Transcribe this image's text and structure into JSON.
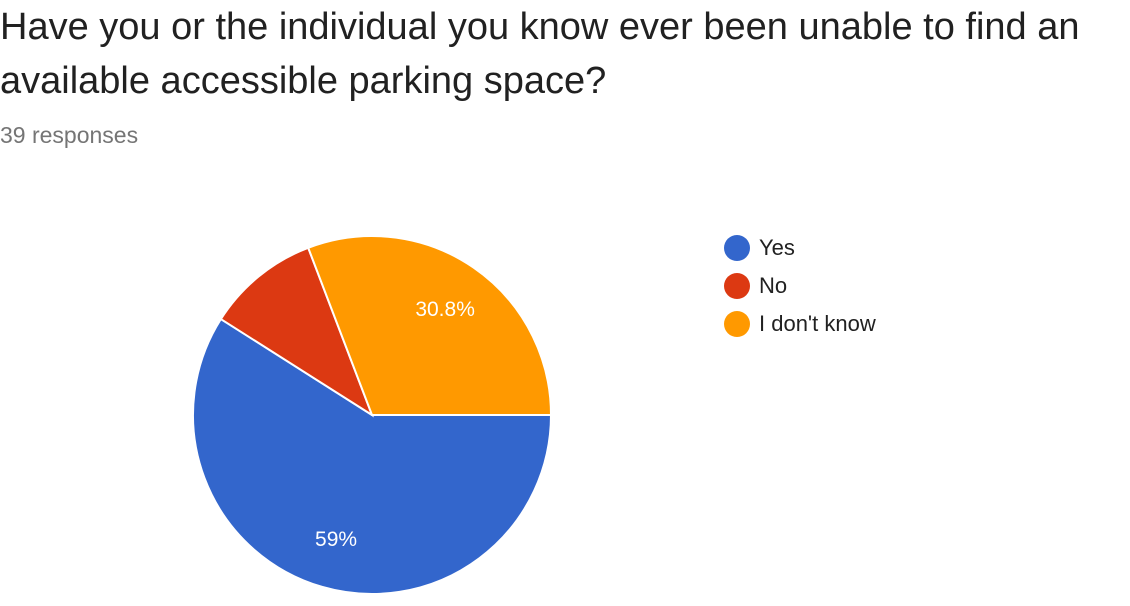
{
  "question": {
    "title": "Have you or the individual you know ever been unable to find an available accessible parking space?",
    "responses": "39 responses"
  },
  "chart_data": {
    "type": "pie",
    "categories": [
      "Yes",
      "No",
      "I don't know"
    ],
    "values": [
      59,
      10.2,
      30.8
    ],
    "labels": [
      "59%",
      "",
      "30.8%"
    ],
    "colors": [
      "#3366cc",
      "#dc3912",
      "#ff9900"
    ],
    "legend_position": "right"
  }
}
